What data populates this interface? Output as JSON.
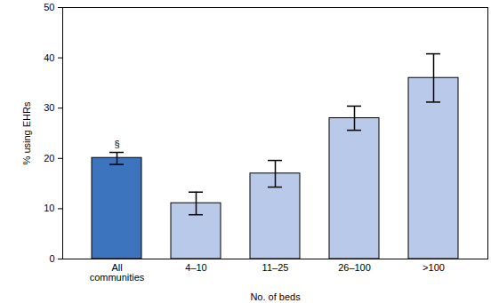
{
  "chart_data": {
    "type": "bar",
    "categories": [
      "All\ncommunities",
      "4–10",
      "11–25",
      "26–100",
      ">100"
    ],
    "values": [
      20.1,
      11.1,
      17.0,
      28.0,
      36.0
    ],
    "error_low": [
      18.8,
      8.8,
      14.3,
      25.6,
      31.2
    ],
    "error_high": [
      21.2,
      13.3,
      19.6,
      30.4,
      40.8
    ],
    "colors": [
      "#3c74bd",
      "#b9c9ea",
      "#b9c9ea",
      "#b9c9ea",
      "#b9c9ea"
    ],
    "x_label": "No. of beds",
    "y_label": "% using EHRs",
    "ylim": [
      0,
      50
    ],
    "yticks": [
      0,
      10,
      20,
      30,
      40,
      50
    ],
    "annotations": [
      {
        "text": "§",
        "x": "All\ncommunities"
      }
    ],
    "grid": false
  }
}
